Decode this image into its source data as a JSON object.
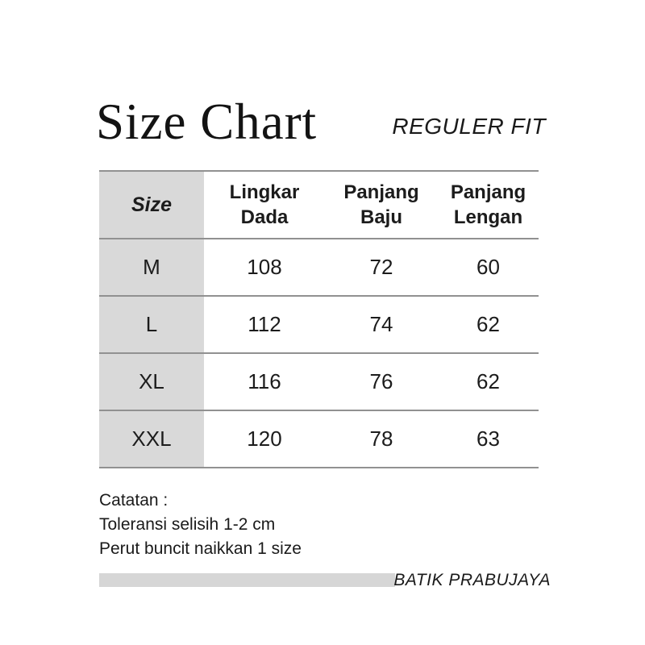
{
  "header": {
    "title": "Size Chart",
    "fit_label": "REGULER FIT"
  },
  "size_table": {
    "columns": [
      "Size",
      "Lingkar\nDada",
      "Panjang\nBaju",
      "Panjang\nLengan"
    ],
    "rows": [
      [
        "M",
        "108",
        "72",
        "60"
      ],
      [
        "L",
        "112",
        "74",
        "62"
      ],
      [
        "XL",
        "116",
        "76",
        "62"
      ],
      [
        "XXL",
        "120",
        "78",
        "63"
      ]
    ]
  },
  "notes": {
    "lines": [
      "Catatan :",
      "Toleransi selisih 1-2 cm",
      "Perut buncit naikkan 1 size"
    ]
  },
  "footer": {
    "brand": "BATIK PRABUJAYA"
  },
  "colors": {
    "text_dark": "#1c1c1c",
    "line_gray": "#919191",
    "fill_gray": "#d9d9d9",
    "bar_gray": "#d6d6d6"
  }
}
